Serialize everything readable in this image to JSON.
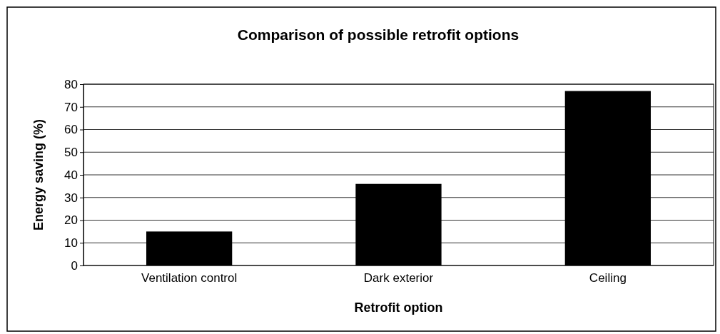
{
  "chart_data": {
    "type": "bar",
    "title": "Comparison of possible retrofit options",
    "xlabel": "Retrofit option",
    "ylabel": "Energy saving (%)",
    "categories": [
      "Ventilation control",
      "Dark exterior",
      "Ceiling"
    ],
    "values": [
      15,
      36,
      77
    ],
    "color": "#000000",
    "ylim": [
      0,
      80
    ],
    "yticks": [
      0,
      10,
      20,
      30,
      40,
      50,
      60,
      70,
      80
    ],
    "grid": "y"
  }
}
